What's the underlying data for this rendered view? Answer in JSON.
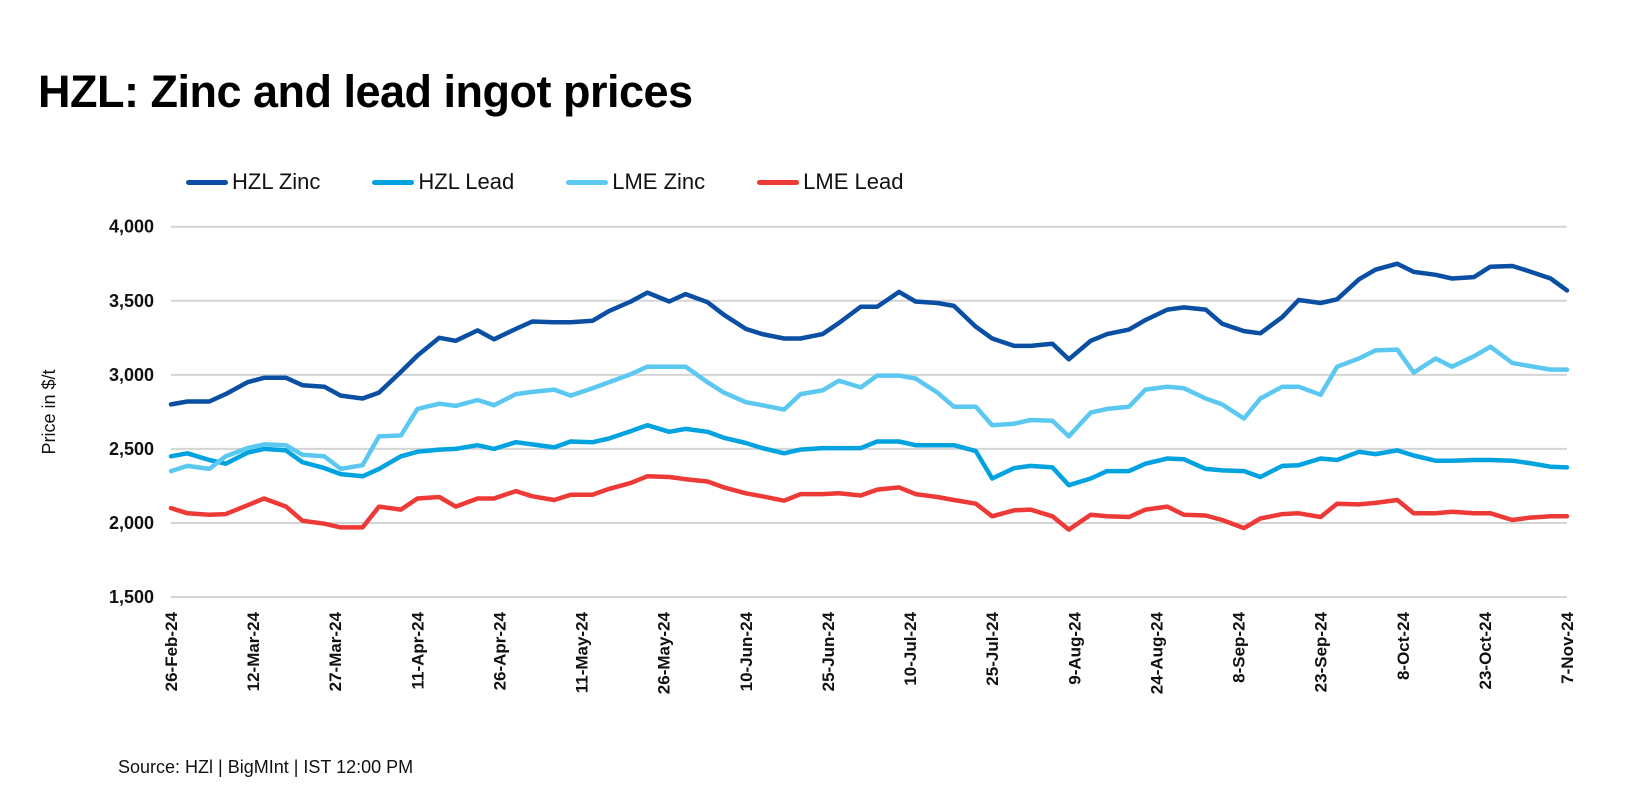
{
  "chart_data": {
    "type": "line",
    "title": "HZL: Zinc and lead ingot prices",
    "ylabel": "Price in $/t",
    "xlabel": "",
    "ylim": [
      1500,
      4000
    ],
    "yticks": [
      1500,
      2000,
      2500,
      3000,
      3500,
      4000
    ],
    "ytick_labels": [
      "1,500",
      "2,000",
      "2,500",
      "3,000",
      "3,500",
      "4,000"
    ],
    "xtick_dates": [
      "2024-02-26",
      "2024-03-12",
      "2024-03-27",
      "2024-04-11",
      "2024-04-26",
      "2024-05-11",
      "2024-05-26",
      "2024-06-10",
      "2024-06-25",
      "2024-07-10",
      "2024-07-25",
      "2024-08-09",
      "2024-08-24",
      "2024-09-08",
      "2024-09-23",
      "2024-10-08",
      "2024-10-23",
      "2024-11-07"
    ],
    "xtick_labels": [
      "26-Feb-24",
      "12-Mar-24",
      "27-Mar-24",
      "11-Apr-24",
      "26-Apr-24",
      "11-May-24",
      "26-May-24",
      "10-Jun-24",
      "25-Jun-24",
      "10-Jul-24",
      "25-Jul-24",
      "9-Aug-24",
      "24-Aug-24",
      "8-Sep-24",
      "23-Sep-24",
      "8-Oct-24",
      "23-Oct-24",
      "7-Nov-24"
    ],
    "grid": true,
    "legend_position": "top",
    "x": [
      "2024-02-26",
      "2024-02-29",
      "2024-03-04",
      "2024-03-07",
      "2024-03-11",
      "2024-03-14",
      "2024-03-18",
      "2024-03-21",
      "2024-03-25",
      "2024-03-28",
      "2024-04-01",
      "2024-04-04",
      "2024-04-08",
      "2024-04-11",
      "2024-04-15",
      "2024-04-18",
      "2024-04-22",
      "2024-04-25",
      "2024-04-29",
      "2024-05-02",
      "2024-05-06",
      "2024-05-09",
      "2024-05-13",
      "2024-05-16",
      "2024-05-20",
      "2024-05-23",
      "2024-05-27",
      "2024-05-30",
      "2024-06-03",
      "2024-06-06",
      "2024-06-10",
      "2024-06-13",
      "2024-06-17",
      "2024-06-20",
      "2024-06-24",
      "2024-06-27",
      "2024-07-01",
      "2024-07-04",
      "2024-07-08",
      "2024-07-11",
      "2024-07-15",
      "2024-07-18",
      "2024-07-22",
      "2024-07-25",
      "2024-07-29",
      "2024-08-01",
      "2024-08-05",
      "2024-08-08",
      "2024-08-12",
      "2024-08-15",
      "2024-08-19",
      "2024-08-22",
      "2024-08-26",
      "2024-08-29",
      "2024-09-02",
      "2024-09-05",
      "2024-09-09",
      "2024-09-12",
      "2024-09-16",
      "2024-09-19",
      "2024-09-23",
      "2024-09-26",
      "2024-09-30",
      "2024-10-03",
      "2024-10-07",
      "2024-10-10",
      "2024-10-14",
      "2024-10-17",
      "2024-10-21",
      "2024-10-24",
      "2024-10-28",
      "2024-10-31",
      "2024-11-04",
      "2024-11-07"
    ],
    "series": [
      {
        "name": "HZL Zinc",
        "color": "#0a4fa3",
        "values": [
          2800,
          2820,
          2820,
          2870,
          2950,
          2980,
          2980,
          2930,
          2920,
          2860,
          2840,
          2880,
          3020,
          3130,
          3250,
          3230,
          3300,
          3240,
          3310,
          3360,
          3355,
          3355,
          3365,
          3430,
          3495,
          3555,
          3495,
          3545,
          3490,
          3405,
          3310,
          3275,
          3245,
          3245,
          3275,
          3350,
          3460,
          3460,
          3560,
          3495,
          3485,
          3465,
          3325,
          3245,
          3195,
          3195,
          3210,
          3105,
          3230,
          3275,
          3305,
          3370,
          3440,
          3455,
          3440,
          3345,
          3295,
          3280,
          3390,
          3505,
          3485,
          3510,
          3645,
          3710,
          3750,
          3695,
          3675,
          3650,
          3660,
          3730,
          3735,
          3700,
          3650,
          3570
        ]
      },
      {
        "name": "HZL Lead",
        "color": "#00a3e0",
        "values": [
          2450,
          2470,
          2425,
          2400,
          2475,
          2500,
          2490,
          2410,
          2370,
          2330,
          2315,
          2365,
          2450,
          2480,
          2495,
          2500,
          2525,
          2500,
          2545,
          2530,
          2510,
          2550,
          2545,
          2570,
          2620,
          2660,
          2615,
          2635,
          2615,
          2575,
          2540,
          2505,
          2470,
          2495,
          2505,
          2505,
          2505,
          2550,
          2550,
          2525,
          2525,
          2525,
          2485,
          2300,
          2370,
          2385,
          2375,
          2255,
          2300,
          2350,
          2350,
          2400,
          2435,
          2430,
          2365,
          2355,
          2350,
          2310,
          2385,
          2390,
          2435,
          2425,
          2480,
          2465,
          2490,
          2455,
          2420,
          2420,
          2425,
          2425,
          2420,
          2405,
          2380,
          2375
        ]
      },
      {
        "name": "LME Zinc",
        "color": "#5bc8f2",
        "values": [
          2350,
          2385,
          2365,
          2450,
          2505,
          2530,
          2525,
          2460,
          2450,
          2365,
          2390,
          2585,
          2590,
          2770,
          2805,
          2790,
          2830,
          2795,
          2870,
          2885,
          2900,
          2860,
          2910,
          2950,
          3005,
          3055,
          3055,
          3055,
          2950,
          2880,
          2815,
          2795,
          2765,
          2870,
          2895,
          2960,
          2915,
          2995,
          2995,
          2975,
          2880,
          2785,
          2785,
          2660,
          2670,
          2695,
          2690,
          2585,
          2745,
          2770,
          2785,
          2900,
          2920,
          2910,
          2840,
          2800,
          2705,
          2840,
          2920,
          2920,
          2865,
          3055,
          3110,
          3165,
          3170,
          3015,
          3110,
          3055,
          3125,
          3190,
          3080,
          3060,
          3035,
          3035
        ]
      },
      {
        "name": "LME Lead",
        "color": "#ee3a36",
        "values": [
          2100,
          2065,
          2055,
          2060,
          2120,
          2165,
          2110,
          2015,
          1995,
          1970,
          1970,
          2110,
          2090,
          2165,
          2175,
          2110,
          2165,
          2165,
          2215,
          2180,
          2155,
          2190,
          2190,
          2230,
          2270,
          2315,
          2310,
          2295,
          2280,
          2240,
          2200,
          2180,
          2150,
          2195,
          2195,
          2200,
          2185,
          2225,
          2240,
          2195,
          2175,
          2155,
          2130,
          2045,
          2085,
          2090,
          2045,
          1955,
          2055,
          2045,
          2040,
          2090,
          2110,
          2055,
          2050,
          2020,
          1965,
          2030,
          2060,
          2065,
          2040,
          2130,
          2125,
          2135,
          2155,
          2065,
          2065,
          2075,
          2065,
          2065,
          2020,
          2035,
          2045,
          2045
        ]
      }
    ]
  },
  "source": "Source: HZl | BigMInt | IST 12:00 PM"
}
